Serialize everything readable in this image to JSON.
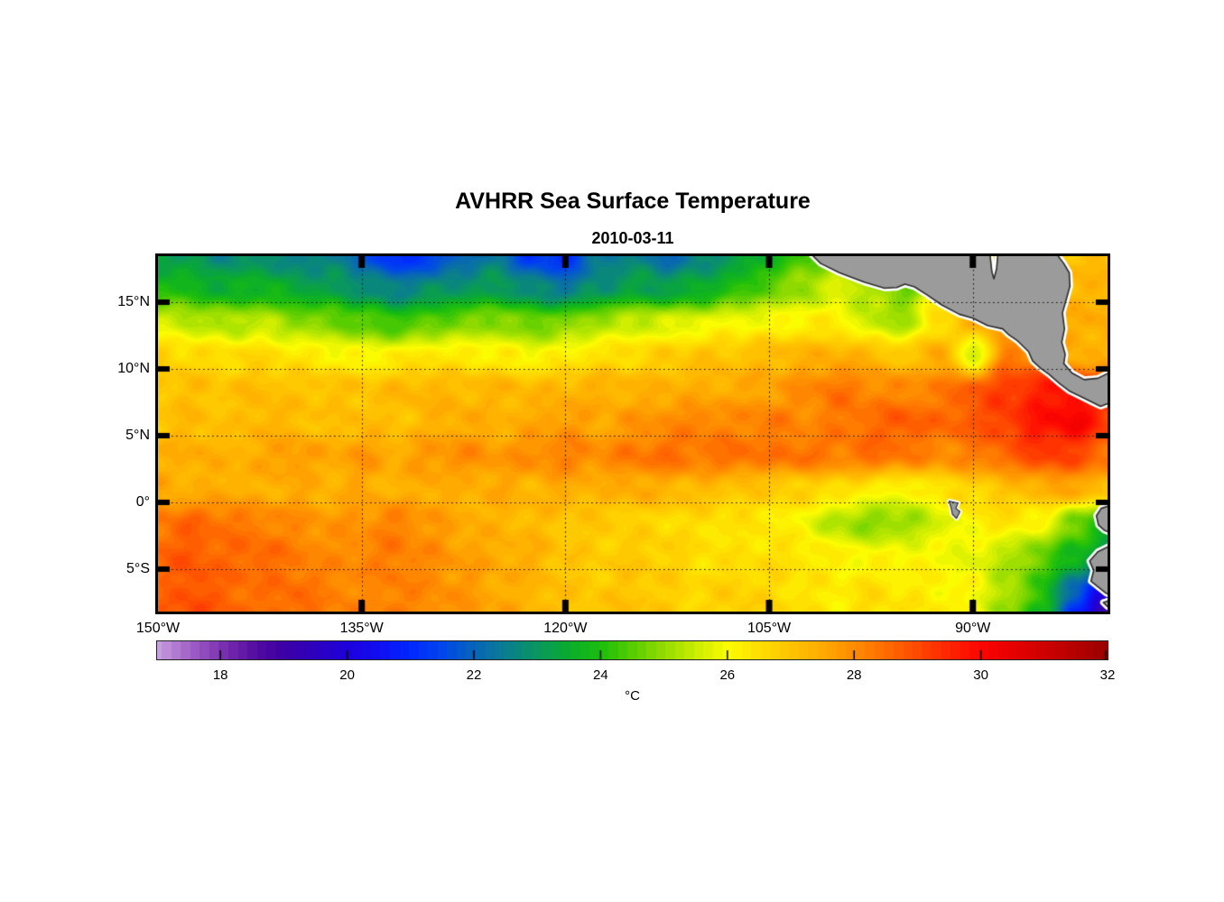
{
  "figure": {
    "title": "AVHRR Sea Surface Temperature",
    "subtitle": "2010-03-11"
  },
  "chart_data": {
    "type": "heatmap",
    "title": "AVHRR Sea Surface Temperature",
    "subtitle": "2010-03-11",
    "projection": {
      "lon_min": -150,
      "lon_max": -80.08,
      "lat_min": -8.18,
      "lat_max": 18.45
    },
    "xticks": [
      {
        "lon": -150,
        "label": "150°W"
      },
      {
        "lon": -135,
        "label": "135°W"
      },
      {
        "lon": -120,
        "label": "120°W"
      },
      {
        "lon": -105,
        "label": "105°W"
      },
      {
        "lon": -90,
        "label": "90°W"
      }
    ],
    "yticks": [
      {
        "lat": 15,
        "label": "15°N"
      },
      {
        "lat": 10,
        "label": "10°N"
      },
      {
        "lat": 5,
        "label": "5°N"
      },
      {
        "lat": 0,
        "label": "0°"
      },
      {
        "lat": -5,
        "label": "5°S"
      }
    ],
    "gridlines": {
      "lats": [
        15,
        10,
        5,
        0,
        -5
      ],
      "lons": [
        -135,
        -120,
        -105,
        -90
      ],
      "style": "dotted",
      "color": "#111111"
    },
    "grid": {
      "lons": [
        -150,
        -147.5,
        -145,
        -142.5,
        -140,
        -137.5,
        -135,
        -132.5,
        -130,
        -127.5,
        -125,
        -122.5,
        -120,
        -117.5,
        -115,
        -112.5,
        -110,
        -107.5,
        -105,
        -102.5,
        -100,
        -97.5,
        -95,
        -92.5,
        -90,
        -87.5,
        -85,
        -82.5,
        -80
      ],
      "lats": [
        18.5,
        16,
        13.5,
        11,
        8.5,
        6,
        3.5,
        1,
        -1.5,
        -4,
        -6.5,
        -9
      ],
      "sst_degC": [
        [
          23.2,
          23.0,
          22.7,
          23.0,
          22.4,
          22.6,
          21.9,
          21.0,
          21.3,
          22.0,
          22.4,
          21.3,
          21.1,
          22.3,
          22.6,
          22.1,
          22.6,
          23.1,
          23.6,
          24.4,
          25.0,
          25.4,
          25.8,
          26.3,
          26.6,
          26.9,
          27.0,
          27.1,
          27.2
        ],
        [
          24.0,
          23.8,
          23.5,
          23.7,
          23.4,
          23.2,
          22.9,
          22.5,
          22.8,
          23.0,
          23.2,
          22.7,
          22.4,
          22.9,
          23.3,
          23.2,
          23.5,
          24.0,
          24.6,
          25.1,
          25.6,
          25.2,
          24.7,
          26.3,
          26.6,
          27.0,
          27.2,
          27.2,
          27.3
        ],
        [
          25.6,
          25.4,
          25.2,
          25.4,
          25.0,
          24.8,
          24.5,
          24.2,
          24.5,
          24.8,
          25.0,
          24.6,
          24.8,
          25.2,
          25.5,
          25.6,
          25.8,
          26.0,
          26.0,
          26.2,
          26.2,
          25.4,
          25.2,
          26.5,
          27.3,
          27.6,
          27.6,
          27.4,
          27.5
        ],
        [
          26.8,
          26.6,
          26.5,
          26.6,
          26.4,
          26.2,
          26.0,
          26.2,
          26.4,
          26.3,
          26.2,
          26.0,
          26.2,
          26.5,
          26.6,
          26.8,
          27.0,
          27.0,
          27.2,
          27.3,
          27.4,
          27.3,
          26.8,
          27.6,
          25.4,
          28.2,
          28.0,
          27.4,
          27.3
        ],
        [
          27.0,
          27.1,
          27.0,
          27.2,
          27.0,
          27.1,
          27.0,
          27.2,
          27.3,
          27.2,
          27.3,
          27.2,
          27.3,
          27.4,
          27.3,
          27.4,
          27.4,
          27.5,
          27.6,
          28.0,
          28.4,
          28.1,
          28.0,
          28.2,
          28.8,
          29.2,
          29.6,
          29.9,
          29.4
        ],
        [
          27.0,
          27.2,
          27.0,
          27.3,
          27.2,
          27.0,
          27.2,
          27.0,
          27.3,
          27.5,
          27.3,
          27.5,
          27.8,
          27.5,
          27.8,
          28.0,
          28.2,
          28.0,
          28.3,
          28.0,
          28.3,
          28.5,
          28.8,
          28.5,
          28.8,
          29.2,
          29.8,
          30.1,
          29.2
        ],
        [
          27.3,
          27.5,
          27.3,
          27.5,
          27.8,
          27.5,
          27.8,
          27.5,
          27.8,
          28.0,
          27.8,
          28.0,
          28.2,
          28.0,
          28.3,
          28.5,
          28.3,
          28.5,
          28.3,
          28.5,
          28.2,
          28.5,
          28.3,
          28.0,
          28.2,
          28.6,
          29.2,
          29.0,
          28.4
        ],
        [
          27.5,
          27.3,
          27.5,
          27.3,
          27.5,
          27.3,
          27.5,
          27.3,
          27.5,
          27.3,
          27.5,
          27.3,
          27.5,
          27.3,
          27.5,
          27.3,
          27.2,
          27.0,
          26.9,
          26.7,
          26.6,
          26.2,
          26.0,
          26.4,
          26.7,
          27.0,
          27.3,
          27.6,
          27.1
        ],
        [
          28.3,
          28.6,
          28.4,
          28.2,
          28.0,
          27.8,
          27.9,
          28.2,
          27.8,
          27.5,
          27.3,
          27.2,
          27.0,
          26.9,
          26.7,
          26.6,
          26.5,
          26.4,
          26.3,
          26.0,
          25.2,
          24.9,
          25.0,
          25.6,
          26.2,
          26.4,
          26.0,
          24.8,
          23.6
        ],
        [
          28.6,
          28.8,
          28.5,
          28.6,
          28.3,
          28.0,
          28.1,
          28.3,
          28.0,
          27.7,
          27.5,
          27.4,
          27.0,
          26.8,
          26.9,
          26.8,
          26.5,
          26.4,
          26.5,
          26.4,
          26.2,
          26.0,
          26.1,
          26.0,
          25.8,
          25.3,
          24.6,
          23.8,
          23.0
        ],
        [
          28.5,
          28.9,
          28.6,
          28.4,
          28.5,
          28.2,
          28.0,
          28.2,
          28.0,
          27.8,
          27.5,
          27.3,
          27.0,
          26.9,
          27.0,
          26.8,
          26.6,
          26.8,
          26.6,
          26.4,
          26.2,
          26.5,
          26.3,
          26.2,
          26.0,
          25.2,
          24.2,
          22.0,
          20.0
        ],
        [
          28.8,
          29.0,
          28.7,
          28.5,
          28.6,
          28.3,
          28.1,
          28.3,
          28.1,
          27.9,
          27.6,
          27.4,
          27.1,
          27.0,
          27.1,
          26.9,
          26.7,
          26.9,
          26.7,
          26.5,
          26.3,
          26.6,
          26.4,
          26.3,
          26.1,
          24.8,
          23.8,
          20.5,
          18.3
        ]
      ]
    },
    "colormap": [
      [
        17.0,
        [
          198,
          160,
          220
        ]
      ],
      [
        17.4,
        [
          170,
          110,
          205
        ]
      ],
      [
        17.8,
        [
          140,
          70,
          185
        ]
      ],
      [
        18.2,
        [
          110,
          35,
          170
        ]
      ],
      [
        18.6,
        [
          80,
          10,
          160
        ]
      ],
      [
        19.0,
        [
          60,
          0,
          165
        ]
      ],
      [
        19.5,
        [
          45,
          0,
          190
        ]
      ],
      [
        20.0,
        [
          30,
          0,
          220
        ]
      ],
      [
        20.5,
        [
          15,
          15,
          242
        ]
      ],
      [
        21.0,
        [
          0,
          40,
          255
        ]
      ],
      [
        21.5,
        [
          0,
          70,
          235
        ]
      ],
      [
        22.0,
        [
          8,
          100,
          185
        ]
      ],
      [
        22.5,
        [
          10,
          125,
          142
        ]
      ],
      [
        23.0,
        [
          10,
          150,
          95
        ]
      ],
      [
        23.5,
        [
          10,
          172,
          45
        ]
      ],
      [
        24.0,
        [
          28,
          190,
          12
        ]
      ],
      [
        24.5,
        [
          88,
          205,
          0
        ]
      ],
      [
        25.0,
        [
          148,
          220,
          0
        ]
      ],
      [
        25.5,
        [
          202,
          236,
          0
        ]
      ],
      [
        26.0,
        [
          252,
          252,
          0
        ]
      ],
      [
        26.5,
        [
          255,
          222,
          0
        ]
      ],
      [
        27.0,
        [
          255,
          196,
          0
        ]
      ],
      [
        27.5,
        [
          255,
          170,
          0
        ]
      ],
      [
        28.0,
        [
          255,
          140,
          0
        ]
      ],
      [
        28.5,
        [
          255,
          108,
          0
        ]
      ],
      [
        29.0,
        [
          255,
          72,
          0
        ]
      ],
      [
        29.5,
        [
          255,
          36,
          0
        ]
      ],
      [
        30.0,
        [
          252,
          4,
          0
        ]
      ],
      [
        30.5,
        [
          230,
          0,
          0
        ]
      ],
      [
        31.0,
        [
          206,
          0,
          0
        ]
      ],
      [
        31.5,
        [
          180,
          0,
          0
        ]
      ],
      [
        32.0,
        [
          152,
          0,
          0
        ]
      ]
    ],
    "colorbar": {
      "min": 17,
      "max": 32,
      "levels": 100,
      "ticks": [
        18,
        20,
        22,
        24,
        26,
        28,
        30,
        32
      ],
      "label": "°C"
    },
    "land": {
      "fill": "#9b9b9b",
      "outline": "#2b2b2b",
      "fringe": "#ffffff",
      "polygons": {
        "central_america": [
          [
            -102.0,
            18.7
          ],
          [
            -101.2,
            17.9
          ],
          [
            -99.8,
            17.2
          ],
          [
            -98.0,
            16.5
          ],
          [
            -96.5,
            16.05
          ],
          [
            -95.6,
            16.1
          ],
          [
            -95.0,
            16.35
          ],
          [
            -94.3,
            16.15
          ],
          [
            -93.3,
            15.5
          ],
          [
            -92.3,
            14.8
          ],
          [
            -91.0,
            14.1
          ],
          [
            -90.0,
            13.8
          ],
          [
            -88.9,
            13.25
          ],
          [
            -87.8,
            13.0
          ],
          [
            -87.4,
            12.6
          ],
          [
            -86.7,
            12.1
          ],
          [
            -85.9,
            11.3
          ],
          [
            -85.6,
            10.6
          ],
          [
            -85.0,
            10.05
          ],
          [
            -84.4,
            9.6
          ],
          [
            -83.6,
            8.9
          ],
          [
            -82.9,
            8.35
          ],
          [
            -82.0,
            7.9
          ],
          [
            -81.1,
            7.45
          ],
          [
            -80.6,
            7.2
          ],
          [
            -80.2,
            7.35
          ],
          [
            -79.8,
            7.5
          ],
          [
            -79.8,
            9.8
          ],
          [
            -80.8,
            9.3
          ],
          [
            -81.8,
            9.2
          ],
          [
            -82.7,
            9.7
          ],
          [
            -83.3,
            10.4
          ],
          [
            -83.2,
            11.1
          ],
          [
            -83.45,
            12.0
          ],
          [
            -83.25,
            13.0
          ],
          [
            -83.4,
            14.2
          ],
          [
            -83.15,
            15.1
          ],
          [
            -82.85,
            16.2
          ],
          [
            -82.9,
            17.2
          ],
          [
            -83.3,
            17.9
          ],
          [
            -83.9,
            18.7
          ],
          [
            -88.15,
            18.7
          ],
          [
            -88.25,
            17.5
          ],
          [
            -88.45,
            16.75
          ],
          [
            -88.6,
            17.3
          ],
          [
            -88.75,
            18.7
          ]
        ],
        "ecuador": [
          [
            -79.8,
            -0.2
          ],
          [
            -80.55,
            -0.45
          ],
          [
            -80.9,
            -1.0
          ],
          [
            -80.75,
            -1.7
          ],
          [
            -80.3,
            -2.1
          ],
          [
            -79.8,
            -2.3
          ]
        ],
        "peru": [
          [
            -79.8,
            -3.2
          ],
          [
            -80.8,
            -3.7
          ],
          [
            -81.4,
            -4.4
          ],
          [
            -81.1,
            -5.1
          ],
          [
            -81.3,
            -5.9
          ],
          [
            -80.7,
            -6.4
          ],
          [
            -80.2,
            -6.8
          ],
          [
            -79.8,
            -7.0
          ]
        ],
        "peru_south": [
          [
            -79.8,
            -7.3
          ],
          [
            -80.4,
            -7.5
          ],
          [
            -80.1,
            -7.8
          ],
          [
            -79.8,
            -7.9
          ]
        ],
        "galapagos": [
          [
            -91.75,
            0.1
          ],
          [
            -91.1,
            -0.05
          ],
          [
            -91.25,
            -0.45
          ],
          [
            -90.95,
            -0.7
          ],
          [
            -91.2,
            -1.2
          ],
          [
            -91.5,
            -0.9
          ],
          [
            -91.6,
            -0.4
          ]
        ]
      }
    }
  }
}
